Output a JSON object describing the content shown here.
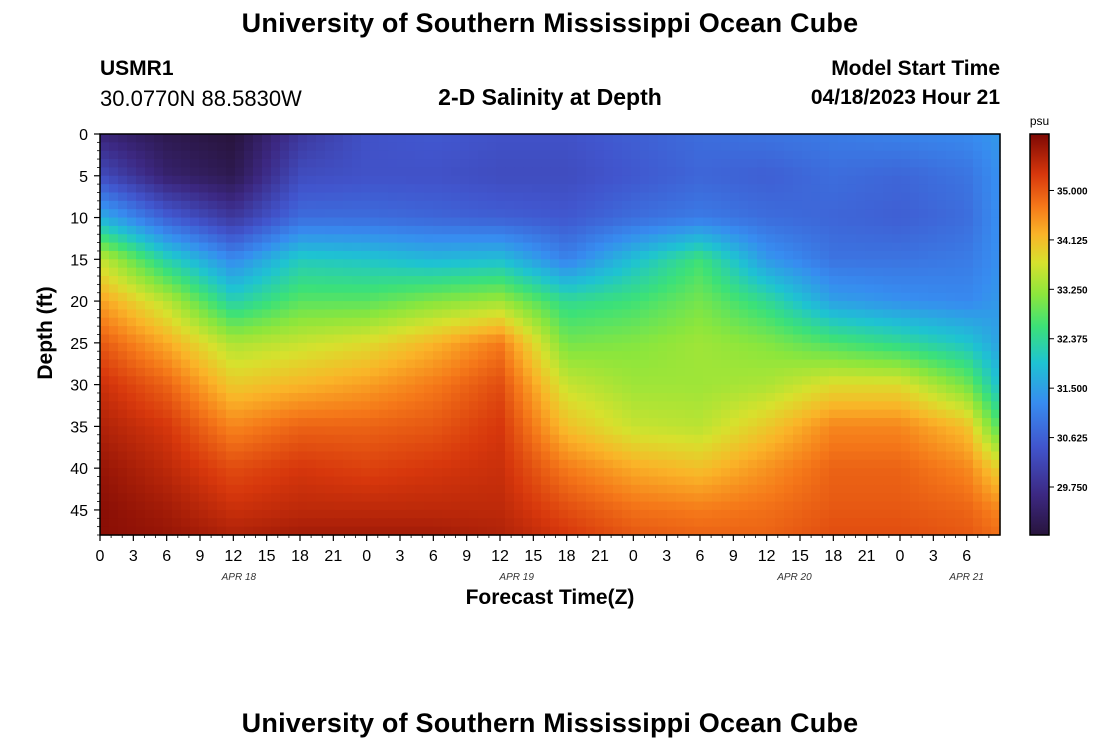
{
  "header": {
    "title": "University of Southern Mississippi Ocean Cube",
    "station_id": "USMR1",
    "coordinates": "30.0770N  88.5830W",
    "subtitle": "2-D Salinity at Depth",
    "start_label": "Model Start Time",
    "start_value": "04/18/2023 Hour 21"
  },
  "footer": {
    "title": "University of Southern Mississippi Ocean Cube"
  },
  "chart_data": {
    "type": "heatmap",
    "title": "2-D Salinity at Depth",
    "xlabel": "Forecast Time(Z)",
    "ylabel": "Depth (ft)",
    "x_hour_range": [
      0,
      81
    ],
    "y_range": [
      0,
      48
    ],
    "x_ticks": [
      "0",
      "3",
      "6",
      "9",
      "12",
      "15",
      "18",
      "21",
      "0",
      "3",
      "6",
      "9",
      "12",
      "15",
      "18",
      "21",
      "0",
      "3",
      "6",
      "9",
      "12",
      "15",
      "18",
      "21",
      "0",
      "3",
      "6"
    ],
    "date_labels": [
      {
        "label": "APR 18",
        "hour": 12.5
      },
      {
        "label": "APR 19",
        "hour": 37.5
      },
      {
        "label": "APR 20",
        "hour": 62.5
      },
      {
        "label": "APR 21",
        "hour": 78.0
      }
    ],
    "y_ticks": [
      0,
      5,
      10,
      15,
      20,
      25,
      30,
      35,
      40,
      45
    ],
    "colorbar": {
      "unit": "psu",
      "range": [
        28.9,
        36.0
      ],
      "tick_values": [
        35.0,
        34.125,
        33.25,
        32.375,
        31.5,
        30.625,
        29.75
      ],
      "tick_labels": [
        "35.000",
        "34.125",
        "33.250",
        "32.375",
        "31.500",
        "30.625",
        "29.750"
      ]
    },
    "salinity_grid": {
      "description": "Approximate salinity (psu) read from colors; rows = depth (ft), columns = forecast hour",
      "hours": [
        0,
        6,
        12,
        18,
        24,
        30,
        36,
        42,
        48,
        54,
        60,
        66,
        72,
        78,
        81
      ],
      "depths": [
        0,
        5,
        10,
        15,
        20,
        25,
        30,
        35,
        40,
        45,
        48
      ],
      "values": [
        [
          29.5,
          29.1,
          28.9,
          29.9,
          30.4,
          30.5,
          30.4,
          30.4,
          30.6,
          30.8,
          30.9,
          31.0,
          31.1,
          31.2,
          31.4
        ],
        [
          30.3,
          29.4,
          29.1,
          30.3,
          30.4,
          30.4,
          30.3,
          30.3,
          30.5,
          30.7,
          30.6,
          30.8,
          30.7,
          30.9,
          31.3
        ],
        [
          31.7,
          30.6,
          29.9,
          30.8,
          30.8,
          30.7,
          30.6,
          30.5,
          30.8,
          31.0,
          30.8,
          30.7,
          30.6,
          30.8,
          31.3
        ],
        [
          33.6,
          32.2,
          31.2,
          32.1,
          32.0,
          31.8,
          31.9,
          31.1,
          31.9,
          32.6,
          31.4,
          30.9,
          30.9,
          31.0,
          31.3
        ],
        [
          34.4,
          33.5,
          32.2,
          32.8,
          32.8,
          33.1,
          33.3,
          32.4,
          32.6,
          33.0,
          32.4,
          31.5,
          31.3,
          31.2,
          31.4
        ],
        [
          35.0,
          34.3,
          33.4,
          33.6,
          33.8,
          34.2,
          34.7,
          33.0,
          33.1,
          33.3,
          33.1,
          32.7,
          32.4,
          32.0,
          31.5
        ],
        [
          35.4,
          34.9,
          34.0,
          34.2,
          34.4,
          34.7,
          35.1,
          33.6,
          33.3,
          33.3,
          33.4,
          33.8,
          33.8,
          33.0,
          31.9
        ],
        [
          35.6,
          35.3,
          34.6,
          34.9,
          34.9,
          35.0,
          35.3,
          34.1,
          33.6,
          33.5,
          34.0,
          34.6,
          34.6,
          34.1,
          32.7
        ],
        [
          35.8,
          35.5,
          35.1,
          35.3,
          35.2,
          35.3,
          35.4,
          34.7,
          34.3,
          34.1,
          34.5,
          34.9,
          34.9,
          34.6,
          33.9
        ],
        [
          35.9,
          35.7,
          35.4,
          35.5,
          35.5,
          35.5,
          35.5,
          35.1,
          34.8,
          34.7,
          34.8,
          35.0,
          35.0,
          34.9,
          34.6
        ],
        [
          35.9,
          35.8,
          35.6,
          35.7,
          35.7,
          35.7,
          35.6,
          35.3,
          35.0,
          34.9,
          34.9,
          35.1,
          35.1,
          35.0,
          34.8
        ]
      ]
    }
  }
}
